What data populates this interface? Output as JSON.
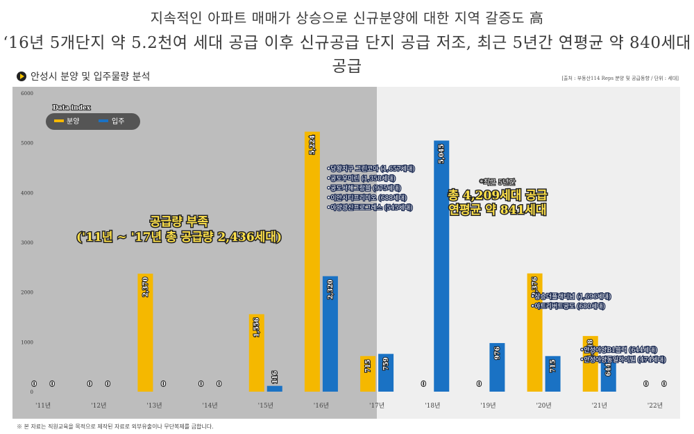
{
  "header": {
    "line1": "지속적인 아파트 매매가 상승으로 신규분양에 대한 지역 갈증도 高",
    "line2": "‘16년 5개단지 약 5.2천여 세대 공급 이후 신규공급 단지 공급 저조, 최근 5년간 연평균 약 840세대 공급"
  },
  "section_title": "안성시 분양 및 입주물량 분석",
  "source": "[출처 : 부동산114 Reps 분양 및 공급동향 / 단위 : 세대]",
  "footnote": "※ 본 자료는 직원교육을 목적으로 제작된 자료로 외부유출이나 무단복제를 금합니다.",
  "legend": {
    "title": "Data index",
    "items": [
      "분양",
      "입주"
    ]
  },
  "colors": {
    "bunyang": "#f5b800",
    "ipju": "#1a72c4",
    "shade_left": "#bdbdbd",
    "shade_right": "#efefef"
  },
  "chart_data": {
    "type": "bar",
    "categories": [
      "'11년",
      "'12년",
      "'13년",
      "'14년",
      "'15년",
      "'16년",
      "'17년",
      "'18년",
      "'19년",
      "'20년",
      "'21년",
      "'22년"
    ],
    "series": [
      {
        "name": "분양",
        "values": [
          0,
          0,
          2370,
          0,
          1556,
          5224,
          715,
          0,
          0,
          2376,
          1118,
          0
        ],
        "labels": [
          "0",
          "0",
          "2,370",
          "0",
          "1,556",
          "5,224",
          "715",
          "0",
          "0",
          "2,376",
          "1,118",
          "0"
        ]
      },
      {
        "name": "입주",
        "values": [
          0,
          0,
          0,
          0,
          116,
          2320,
          759,
          5045,
          976,
          715,
          644,
          0
        ],
        "labels": [
          "0",
          "0",
          "0",
          "0",
          "116",
          "2,320",
          "759",
          "5,045",
          "976",
          "715",
          "644",
          "0"
        ]
      }
    ],
    "ylim": [
      0,
      6000
    ],
    "yticks": [
      0,
      1000,
      2000,
      3000,
      4000,
      5000,
      6000
    ],
    "annotations": {
      "shortage": [
        "공급량 부족",
        "('11년 ~ '17년 총 공급량 2,436세대)"
      ],
      "recent": [
        "*최근 5년간",
        "총 4,209세대 공급",
        "연평균 약 841세대"
      ],
      "y2016": [
        "•당왕지구 그린코아 (1,657세대)",
        "•공도우미린 (1,358세대)",
        "•공도서해그랑블 (975세대)",
        "•이안시티프리미오 (688세대)",
        "•아양광신프로그레스 (545세대)"
      ],
      "y2020": [
        "•상승더플래티넘 (1,696세대)",
        "•아트리버트공도 (680세대)"
      ],
      "y2021": [
        "•안성아양B1블럭 (644세대)",
        "•안성아양동일하이빌 (474세대)"
      ]
    }
  }
}
